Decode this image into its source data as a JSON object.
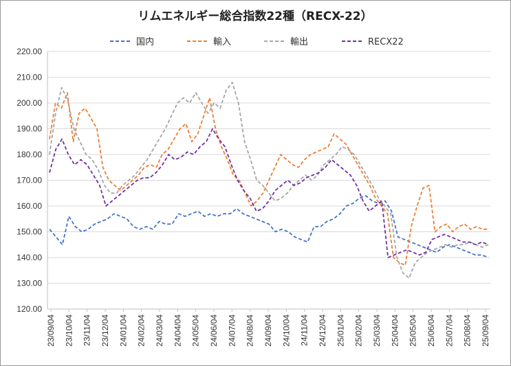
{
  "chart_data": {
    "type": "line",
    "title": "リムエネルギー総合指数22種（RECX-22）",
    "xlabel": "",
    "ylabel": "",
    "ylim": [
      120,
      220
    ],
    "yticks": [
      "220.00",
      "210.00",
      "200.00",
      "190.00",
      "180.00",
      "170.00",
      "160.00",
      "150.00",
      "140.00",
      "130.00",
      "120.00"
    ],
    "x_tick_labels": [
      "23/09/04",
      "23/10/04",
      "23/11/04",
      "23/12/04",
      "24/01/04",
      "24/02/04",
      "24/03/04",
      "24/04/04",
      "24/05/04",
      "24/06/04",
      "24/07/04",
      "24/08/04",
      "24/09/04",
      "24/10/04",
      "24/11/04",
      "24/12/04",
      "25/01/04",
      "25/02/04",
      "25/03/04",
      "25/04/04",
      "25/05/04",
      "25/06/04",
      "25/07/04",
      "25/08/04",
      "25/09/04"
    ],
    "grid": true,
    "legend_position": "top",
    "line_style": "dashed",
    "series": [
      {
        "name": "国内",
        "color": "#4472C4",
        "values": [
          151,
          148,
          145,
          156,
          152,
          150,
          151,
          153,
          154,
          155,
          157,
          156,
          155,
          152,
          151,
          152,
          151,
          154,
          153,
          153,
          157,
          156,
          157,
          158,
          156,
          157,
          156,
          157,
          157,
          159,
          157,
          156,
          155,
          154,
          153,
          150,
          151,
          150,
          148,
          147,
          146,
          152,
          152,
          154,
          155,
          157,
          160,
          161,
          163,
          164,
          162,
          161,
          162,
          158,
          148,
          147,
          146,
          145,
          144,
          143,
          142,
          144,
          145,
          144,
          143,
          142,
          141,
          141,
          140
        ]
      },
      {
        "name": "輸入",
        "color": "#ED7D31",
        "values": [
          186,
          200,
          198,
          204,
          185,
          196,
          198,
          194,
          190,
          175,
          170,
          168,
          166,
          168,
          170,
          172,
          175,
          176,
          175,
          180,
          182,
          186,
          190,
          192,
          185,
          188,
          195,
          202,
          190,
          183,
          178,
          172,
          170,
          165,
          160,
          162,
          165,
          170,
          175,
          180,
          178,
          176,
          175,
          178,
          180,
          181,
          182,
          183,
          188,
          186,
          184,
          180,
          176,
          172,
          168,
          163,
          160,
          157,
          140,
          138,
          137,
          152,
          160,
          167,
          168,
          150,
          152,
          153,
          150,
          152,
          153,
          151,
          152,
          151,
          151
        ]
      },
      {
        "name": "輸出",
        "color": "#A5A5A5",
        "values": [
          180,
          196,
          206,
          201,
          190,
          185,
          180,
          178,
          174,
          168,
          165,
          165,
          168,
          170,
          172,
          175,
          178,
          182,
          186,
          190,
          195,
          200,
          202,
          200,
          204,
          200,
          196,
          200,
          198,
          205,
          208,
          200,
          185,
          178,
          170,
          168,
          165,
          162,
          163,
          165,
          168,
          170,
          172,
          170,
          172,
          176,
          178,
          180,
          183,
          182,
          180,
          176,
          172,
          168,
          163,
          160,
          157,
          140,
          134,
          132,
          138,
          140,
          142,
          143,
          144,
          145,
          144,
          145,
          145,
          146,
          145,
          144,
          145
        ]
      },
      {
        "name": "RECX22",
        "color": "#7030A0",
        "values": [
          173,
          182,
          186,
          180,
          176,
          178,
          176,
          172,
          168,
          160,
          162,
          164,
          166,
          168,
          170,
          171,
          171,
          173,
          176,
          180,
          178,
          179,
          181,
          180,
          183,
          185,
          190,
          186,
          183,
          176,
          170,
          166,
          163,
          158,
          159,
          162,
          166,
          168,
          170,
          168,
          169,
          171,
          172,
          173,
          175,
          178,
          176,
          174,
          172,
          168,
          162,
          158,
          160,
          162,
          140,
          141,
          142,
          143,
          142,
          141,
          142,
          147,
          148,
          149,
          148,
          147,
          146,
          146,
          145,
          146,
          145
        ]
      }
    ]
  }
}
